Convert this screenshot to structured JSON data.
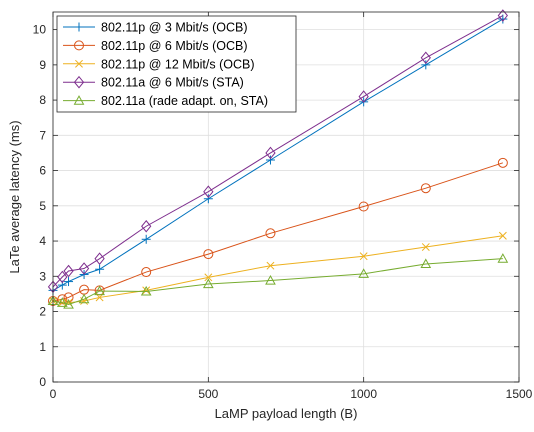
{
  "chart_data": {
    "type": "line",
    "title": "",
    "xlabel": "LaMP payload length (B)",
    "ylabel": "LaTe average latency (ms)",
    "xlim": [
      0,
      1500
    ],
    "ylim": [
      0,
      10.5
    ],
    "xticks": [
      0,
      500,
      1000,
      1500
    ],
    "yticks": [
      0,
      1,
      2,
      3,
      4,
      5,
      6,
      7,
      8,
      9,
      10
    ],
    "grid": true,
    "legend_position": "top-left",
    "x": [
      0,
      30,
      50,
      100,
      150,
      300,
      500,
      700,
      1000,
      1200,
      1448
    ],
    "series": [
      {
        "name": "802.11p @ 3 Mbit/s (OCB)",
        "color": "#0072BD",
        "marker": "plus",
        "values": [
          2.6,
          2.75,
          2.85,
          3.05,
          3.2,
          4.05,
          5.2,
          6.3,
          7.95,
          9.0,
          10.3
        ]
      },
      {
        "name": "802.11p @ 6 Mbit/s (OCB)",
        "color": "#D95319",
        "marker": "circle",
        "values": [
          2.3,
          2.35,
          2.4,
          2.62,
          2.6,
          3.12,
          3.63,
          4.22,
          4.98,
          5.5,
          6.22
        ]
      },
      {
        "name": "802.11p @ 12 Mbit/s (OCB)",
        "color": "#EDB120",
        "marker": "x",
        "values": [
          2.3,
          2.25,
          2.25,
          2.3,
          2.4,
          2.6,
          2.97,
          3.3,
          3.57,
          3.83,
          4.15
        ]
      },
      {
        "name": "802.11a @ 6 Mbit/s (STA)",
        "color": "#7E2F8E",
        "marker": "diamond",
        "values": [
          2.7,
          2.98,
          3.15,
          3.22,
          3.5,
          4.42,
          5.4,
          6.5,
          8.1,
          9.2,
          10.4
        ]
      },
      {
        "name": "802.11a (rade adapt. on, STA)",
        "color": "#77AC30",
        "marker": "triangle",
        "values": [
          2.3,
          2.25,
          2.2,
          2.35,
          2.58,
          2.57,
          2.78,
          2.88,
          3.07,
          3.35,
          3.5
        ]
      }
    ]
  }
}
